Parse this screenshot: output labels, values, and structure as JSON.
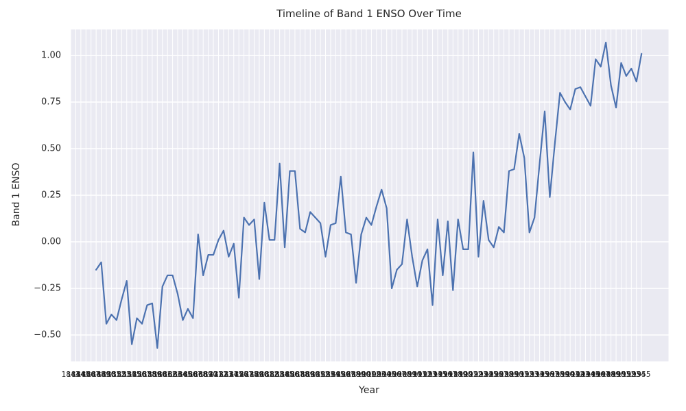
{
  "title": "Timeline of Band 1 ENSO Over Time",
  "chart_data": {
    "type": "line",
    "title": "Timeline of Band 1 ENSO Over Time",
    "xlabel": "Year",
    "ylabel": "Band 1 ENSO",
    "legend": false,
    "grid": true,
    "style_note": "seaborn darkgrid: lavender axes background, white gridlines, no spines",
    "x_ticks": {
      "start_year": 1843,
      "end_year": 1955,
      "step": 1,
      "note": "every year labeled; labels overlap into a nearly solid dark band, only '18' at left and trailing '55' digits legible"
    },
    "ylim": [
      -0.64,
      1.14
    ],
    "ytick_values": [
      1.0,
      0.75,
      0.5,
      0.25,
      0.0,
      -0.25,
      -0.5
    ],
    "ytick_labels": [
      "1.00",
      "0.75",
      "0.50",
      "0.25",
      "0.00",
      "−0.25",
      "−0.50"
    ],
    "series": [
      {
        "name": "Band 1 ENSO",
        "x_start_year": 1848,
        "x_end_year": 1955,
        "values": [
          -0.15,
          -0.11,
          -0.44,
          -0.39,
          -0.42,
          -0.31,
          -0.21,
          -0.55,
          -0.41,
          -0.44,
          -0.34,
          -0.33,
          -0.57,
          -0.24,
          -0.18,
          -0.18,
          -0.28,
          -0.42,
          -0.36,
          -0.41,
          0.04,
          -0.18,
          -0.07,
          -0.07,
          0.01,
          0.06,
          -0.08,
          -0.01,
          -0.3,
          0.13,
          0.09,
          0.12,
          -0.2,
          0.21,
          0.01,
          0.01,
          0.42,
          -0.03,
          0.38,
          0.38,
          0.07,
          0.05,
          0.16,
          0.13,
          0.1,
          -0.08,
          0.09,
          0.1,
          0.35,
          0.05,
          0.04,
          -0.22,
          0.04,
          0.13,
          0.09,
          0.19,
          0.28,
          0.18,
          -0.25,
          -0.15,
          -0.12,
          0.12,
          -0.08,
          -0.24,
          -0.1,
          -0.04,
          -0.34,
          0.12,
          -0.18,
          0.11,
          -0.26,
          0.12,
          -0.04,
          -0.04,
          0.48,
          -0.08,
          0.22,
          0.01,
          -0.03,
          0.08,
          0.05,
          0.38,
          0.39,
          0.58,
          0.45,
          0.05,
          0.13,
          0.42,
          0.7,
          0.24,
          0.53,
          0.8,
          0.75,
          0.71,
          0.82,
          0.83,
          0.78,
          0.73,
          0.98,
          0.94,
          1.07,
          0.84,
          0.72,
          0.96,
          0.89,
          0.93,
          0.86,
          1.01
        ]
      }
    ],
    "colors": {
      "line": "#4c72b0",
      "plot_background": "#eaeaf2",
      "gridline": "#ffffff",
      "text": "#262626",
      "figure_background": "#ffffff"
    }
  }
}
